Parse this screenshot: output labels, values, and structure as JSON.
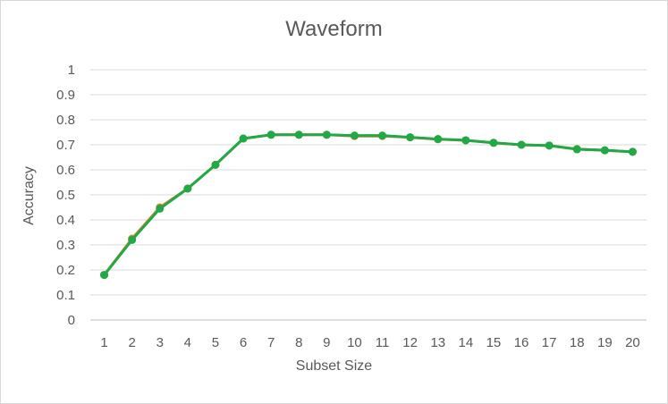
{
  "chart_data": {
    "type": "line",
    "title": "Waveform",
    "xlabel": "Subset Size",
    "ylabel": "Accuracy",
    "categories": [
      "1",
      "2",
      "3",
      "4",
      "5",
      "6",
      "7",
      "8",
      "9",
      "10",
      "11",
      "12",
      "13",
      "14",
      "15",
      "16",
      "17",
      "18",
      "19",
      "20"
    ],
    "ylim": [
      0,
      1
    ],
    "yticks": [
      "0",
      "0.1",
      "0.2",
      "0.3",
      "0.4",
      "0.5",
      "0.6",
      "0.7",
      "0.8",
      "0.9",
      "1"
    ],
    "grid": true,
    "series": [
      {
        "color": "#ed7d31",
        "values": [
          0.18,
          0.325,
          0.45,
          0.525,
          0.62,
          0.725,
          0.74,
          0.74,
          0.74,
          0.735,
          0.735,
          0.73,
          0.722,
          0.718,
          0.708,
          0.7,
          0.697,
          0.683,
          0.678,
          0.672
        ]
      },
      {
        "color": "#21a847",
        "values": [
          0.18,
          0.32,
          0.445,
          0.525,
          0.62,
          0.725,
          0.74,
          0.74,
          0.74,
          0.737,
          0.737,
          0.73,
          0.723,
          0.718,
          0.708,
          0.7,
          0.697,
          0.682,
          0.678,
          0.672
        ]
      }
    ]
  }
}
